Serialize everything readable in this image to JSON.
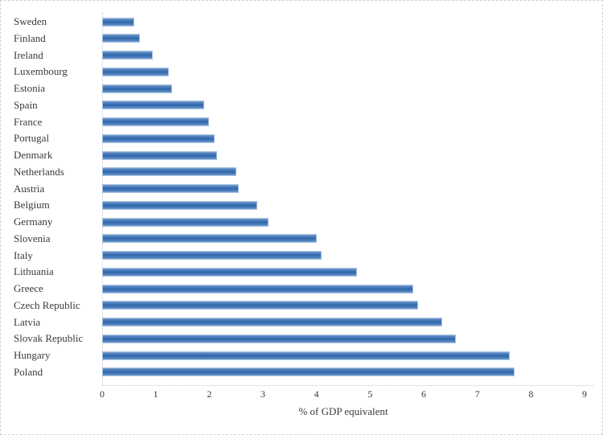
{
  "chart_data": {
    "type": "bar",
    "orientation": "horizontal",
    "title": "",
    "xlabel": "% of GDP equivalent",
    "ylabel": "",
    "categories": [
      "Sweden",
      "Finland",
      "Ireland",
      "Luxembourg",
      "Estonia",
      "Spain",
      "France",
      "Portugal",
      "Denmark",
      "Netherlands",
      "Austria",
      "Belgium",
      "Germany",
      "Slovenia",
      "Italy",
      "Lithuania",
      "Greece",
      "Czech Republic",
      "Latvia",
      "Slovak Republic",
      "Hungary",
      "Poland"
    ],
    "values": [
      0.6,
      0.7,
      0.95,
      1.25,
      1.3,
      1.9,
      2.0,
      2.1,
      2.15,
      2.5,
      2.55,
      2.9,
      3.1,
      4.0,
      4.1,
      4.75,
      5.8,
      5.9,
      6.35,
      6.6,
      7.6,
      7.7
    ],
    "xlim": [
      0,
      9
    ],
    "x_ticks": [
      0,
      1,
      2,
      3,
      4,
      5,
      6,
      7,
      8,
      9
    ],
    "grid": false,
    "legend": false,
    "bar_color": "#3f74b5",
    "bar_border_color": "#a9c3e1",
    "axis_line_color": "#c7c7cb",
    "text_color": "#3a3a3a"
  }
}
